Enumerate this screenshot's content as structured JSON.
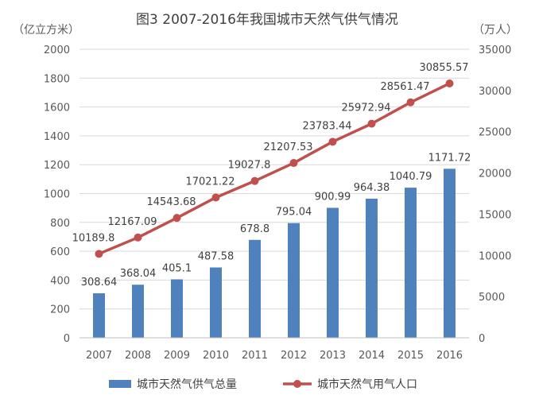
{
  "chart_data": {
    "type": "bar",
    "title": "图3  2007-2016年我国城市天然气供气情况",
    "categories": [
      "2007",
      "2008",
      "2009",
      "2010",
      "2011",
      "2012",
      "2013",
      "2014",
      "2015",
      "2016"
    ],
    "y_left": {
      "unit_label": "（亿立方米）",
      "ylim": [
        0,
        2000
      ],
      "ticks": [
        "0",
        "200",
        "400",
        "600",
        "800",
        "1000",
        "1200",
        "1400",
        "1600",
        "1800",
        "2000"
      ]
    },
    "y_right": {
      "unit_label": "（万人）",
      "ylim": [
        0,
        35000
      ],
      "ticks": [
        "0",
        "5000",
        "10000",
        "15000",
        "20000",
        "25000",
        "30000",
        "35000"
      ]
    },
    "grid": true,
    "legend_position": "bottom",
    "series": [
      {
        "name": "城市天然气供气总量",
        "type": "bar",
        "axis": "left",
        "color": "#4F81BD",
        "values": [
          308.64,
          368.04,
          405.1,
          487.58,
          678.8,
          795.04,
          900.99,
          964.38,
          1040.79,
          1171.72
        ],
        "labels": [
          "308.64",
          "368.04",
          "405.1",
          "487.58",
          "678.8",
          "795.04",
          "900.99",
          "964.38",
          "1040.79",
          "1171.72"
        ]
      },
      {
        "name": "城市天然气用气人口",
        "type": "line",
        "axis": "right",
        "color": "#C0504D",
        "values": [
          10189.8,
          12167.09,
          14543.68,
          17021.22,
          19027.8,
          21207.53,
          23783.44,
          25972.94,
          28561.47,
          30855.57
        ],
        "labels": [
          "10189.8",
          "12167.09",
          "14543.68",
          "17021.22",
          "19027.8",
          "21207.53",
          "23783.44",
          "25972.94",
          "28561.47",
          "30855.57"
        ]
      }
    ]
  }
}
